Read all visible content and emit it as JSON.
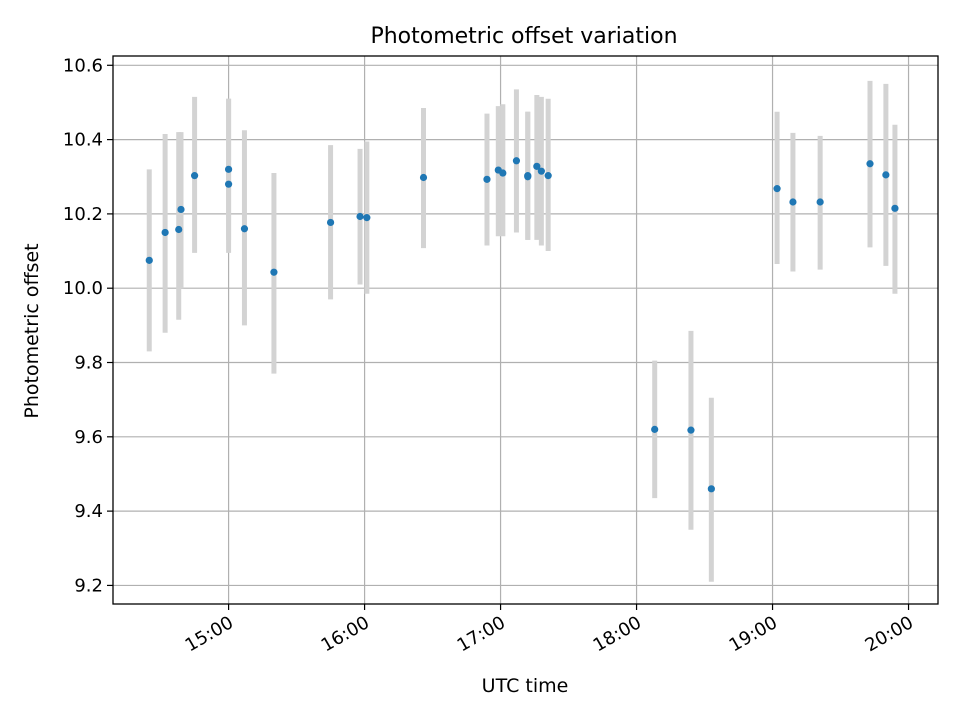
{
  "chart_data": {
    "type": "scatter",
    "title": "Photometric offset variation",
    "xlabel": "UTC time",
    "ylabel": "Photometric offset",
    "x_ticks": [
      "15:00",
      "16:00",
      "17:00",
      "18:00",
      "19:00",
      "20:00"
    ],
    "y_ticks": [
      "9.2",
      "9.4",
      "9.6",
      "9.8",
      "10.0",
      "10.2",
      "10.4",
      "10.6"
    ],
    "xlim": [
      "14:09",
      "20:13"
    ],
    "ylim": [
      9.15,
      10.625
    ],
    "grid": true,
    "colors": {
      "point": "#1f77b4",
      "error_bar": "#d3d3d3"
    },
    "points": [
      {
        "x": "14:25",
        "y": 10.075,
        "lo": 9.83,
        "hi": 10.32
      },
      {
        "x": "14:32",
        "y": 10.15,
        "lo": 9.88,
        "hi": 10.415
      },
      {
        "x": "14:38",
        "y": 10.158,
        "lo": 9.915,
        "hi": 10.42
      },
      {
        "x": "14:39",
        "y": 10.212,
        "lo": 10.0,
        "hi": 10.42
      },
      {
        "x": "14:45",
        "y": 10.303,
        "lo": 10.095,
        "hi": 10.515
      },
      {
        "x": "15:00",
        "y": 10.28,
        "lo": 10.095,
        "hi": 10.51
      },
      {
        "x": "15:00",
        "y": 10.32,
        "lo": 10.13,
        "hi": 10.51
      },
      {
        "x": "15:07",
        "y": 10.16,
        "lo": 9.9,
        "hi": 10.425
      },
      {
        "x": "15:20",
        "y": 10.043,
        "lo": 9.77,
        "hi": 10.31
      },
      {
        "x": "15:45",
        "y": 10.177,
        "lo": 9.97,
        "hi": 10.385
      },
      {
        "x": "15:58",
        "y": 10.193,
        "lo": 10.01,
        "hi": 10.375
      },
      {
        "x": "16:01",
        "y": 10.19,
        "lo": 9.985,
        "hi": 10.395
      },
      {
        "x": "16:26",
        "y": 10.298,
        "lo": 10.108,
        "hi": 10.485
      },
      {
        "x": "16:54",
        "y": 10.293,
        "lo": 10.115,
        "hi": 10.47
      },
      {
        "x": "16:59",
        "y": 10.318,
        "lo": 10.14,
        "hi": 10.49
      },
      {
        "x": "17:01",
        "y": 10.31,
        "lo": 10.14,
        "hi": 10.495
      },
      {
        "x": "17:07",
        "y": 10.343,
        "lo": 10.15,
        "hi": 10.535
      },
      {
        "x": "17:12",
        "y": 10.303,
        "lo": 10.13,
        "hi": 10.475
      },
      {
        "x": "17:12",
        "y": 10.3,
        "lo": 10.13,
        "hi": 10.475
      },
      {
        "x": "17:16",
        "y": 10.328,
        "lo": 10.13,
        "hi": 10.52
      },
      {
        "x": "17:18",
        "y": 10.315,
        "lo": 10.115,
        "hi": 10.515
      },
      {
        "x": "17:21",
        "y": 10.303,
        "lo": 10.1,
        "hi": 10.51
      },
      {
        "x": "18:08",
        "y": 9.62,
        "lo": 9.435,
        "hi": 9.805
      },
      {
        "x": "18:24",
        "y": 9.618,
        "lo": 9.35,
        "hi": 9.885
      },
      {
        "x": "18:33",
        "y": 9.46,
        "lo": 9.21,
        "hi": 9.705
      },
      {
        "x": "19:02",
        "y": 10.268,
        "lo": 10.065,
        "hi": 10.475
      },
      {
        "x": "19:09",
        "y": 10.232,
        "lo": 10.045,
        "hi": 10.418
      },
      {
        "x": "19:21",
        "y": 10.232,
        "lo": 10.05,
        "hi": 10.41
      },
      {
        "x": "19:43",
        "y": 10.335,
        "lo": 10.11,
        "hi": 10.558
      },
      {
        "x": "19:50",
        "y": 10.305,
        "lo": 10.06,
        "hi": 10.55
      },
      {
        "x": "19:54",
        "y": 10.215,
        "lo": 9.985,
        "hi": 10.44
      }
    ]
  }
}
